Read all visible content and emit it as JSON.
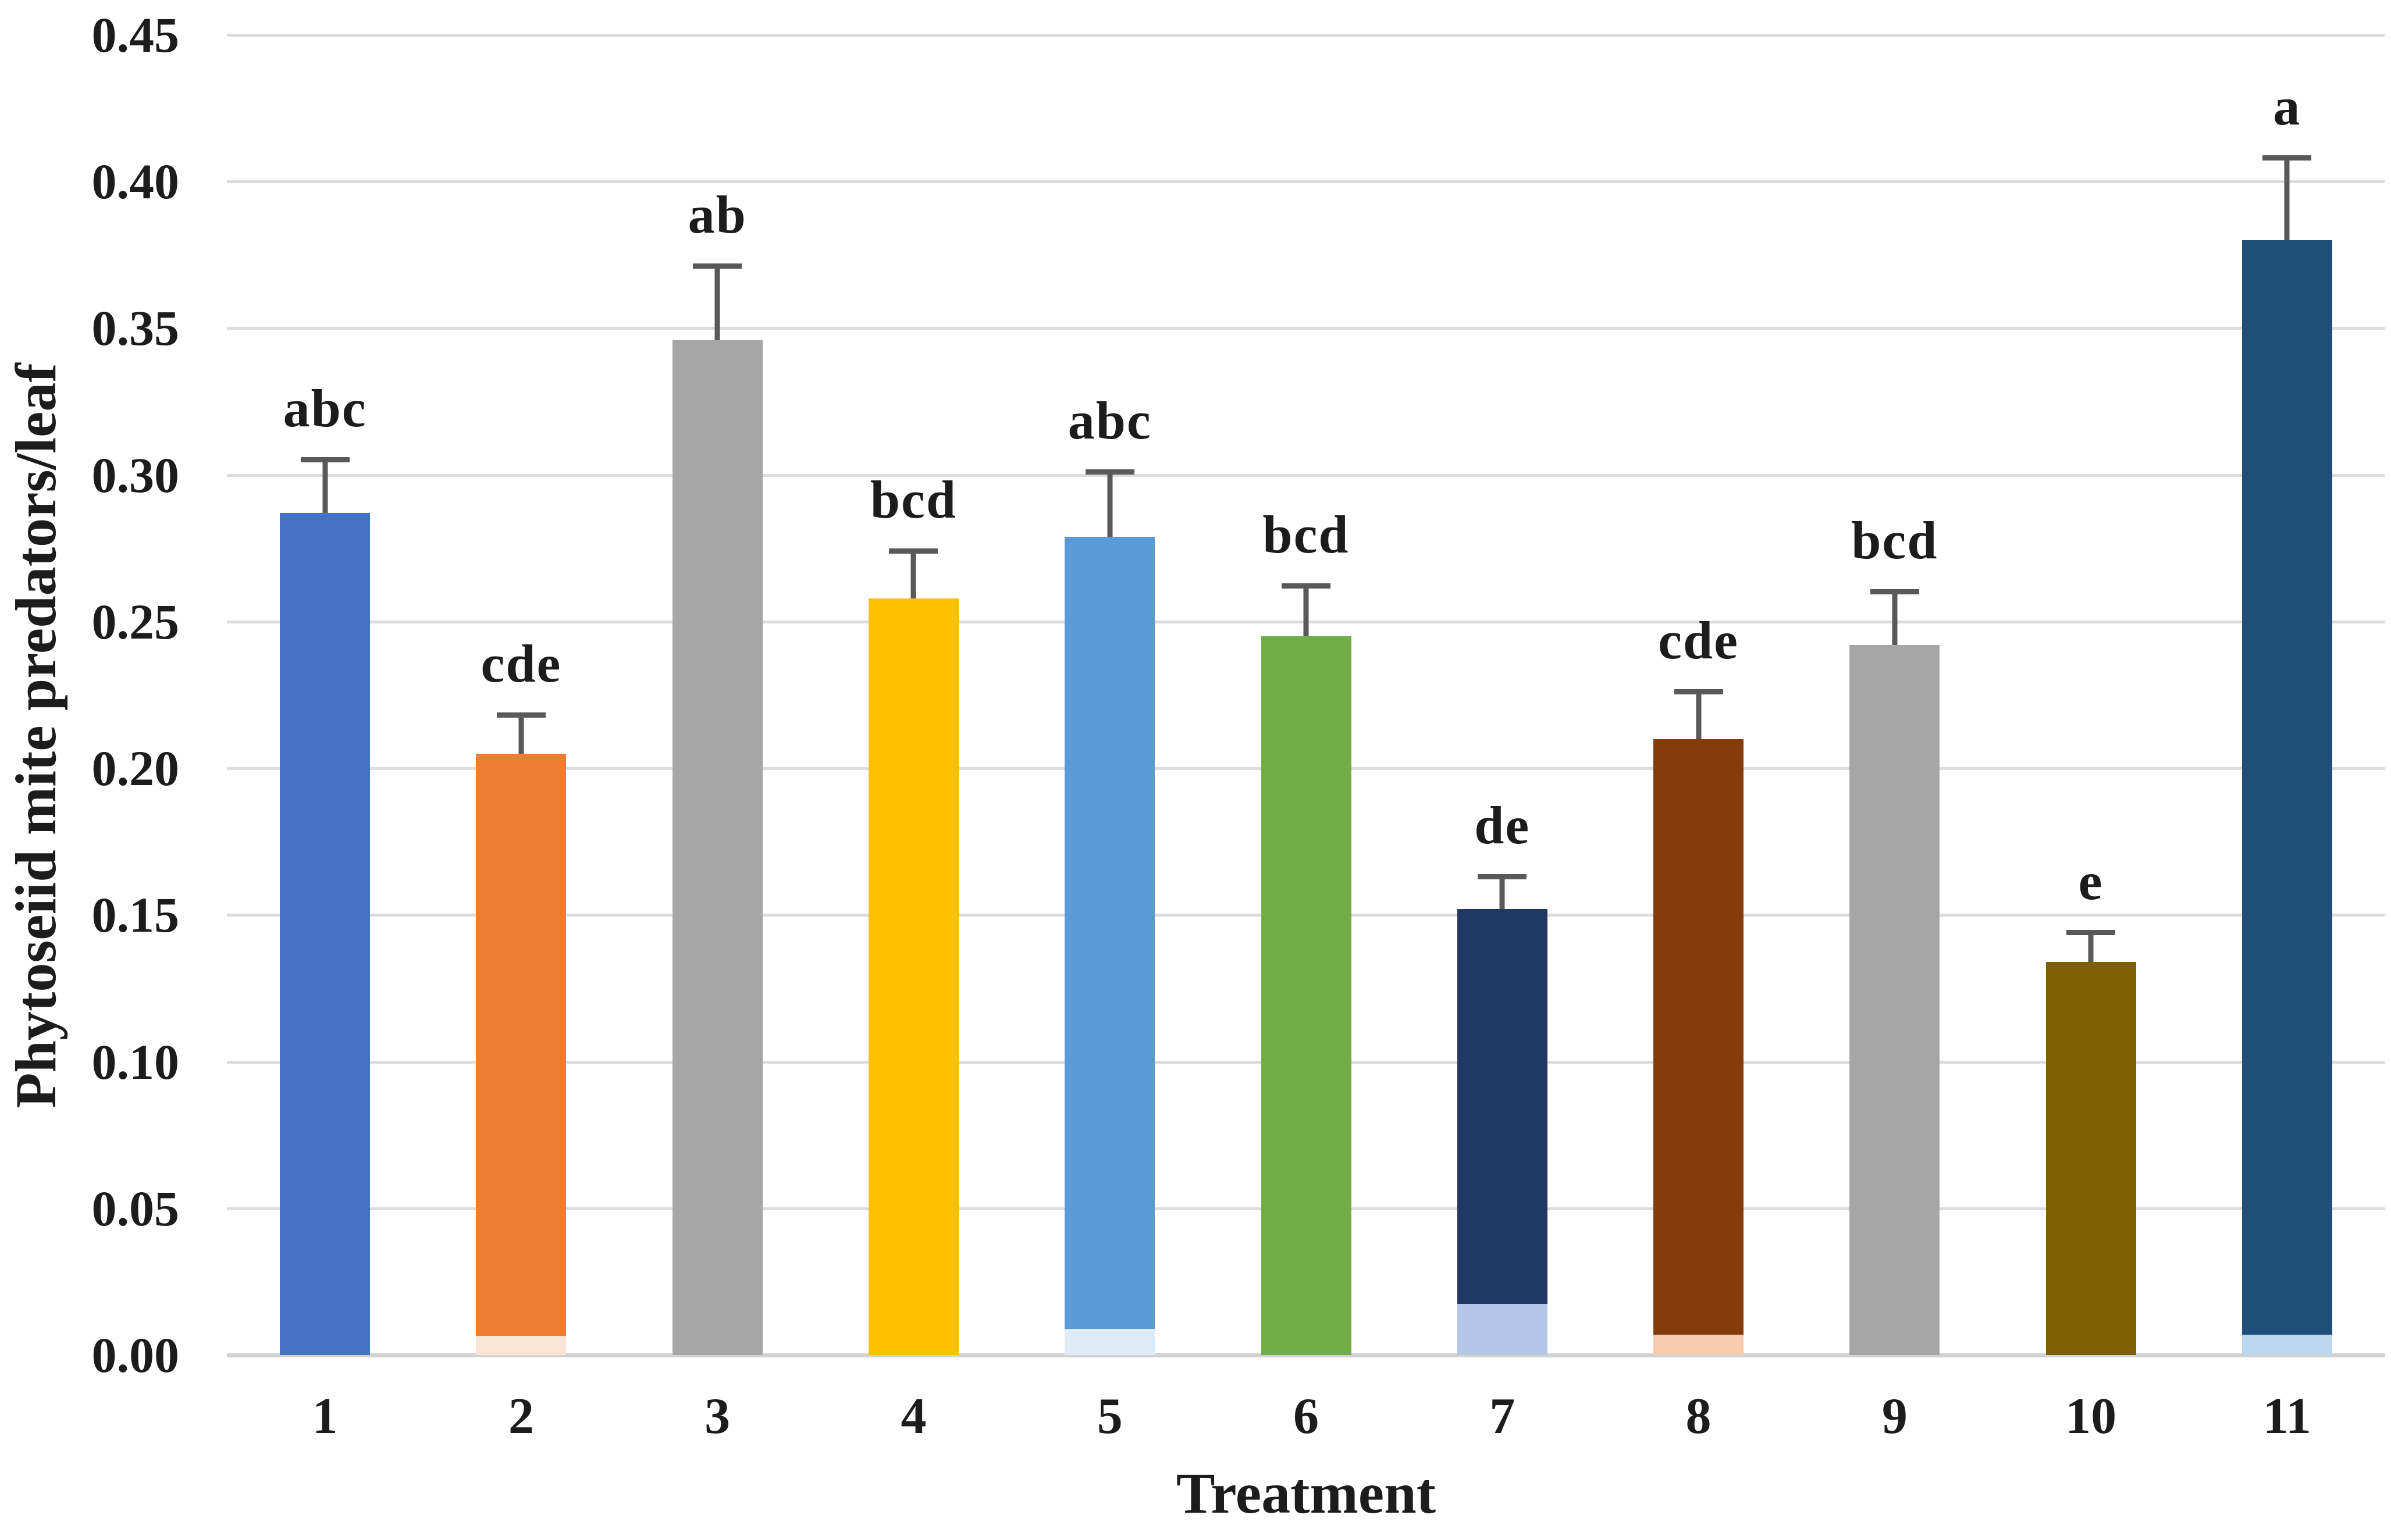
{
  "figure": {
    "background": "#ffffff"
  },
  "chart_data": {
    "type": "bar",
    "title": "",
    "xlabel": "Treatment",
    "ylabel": "Phytoseiid mite predators/leaf",
    "categories": [
      "1",
      "2",
      "3",
      "4",
      "5",
      "6",
      "7",
      "8",
      "9",
      "10",
      "11"
    ],
    "values": [
      0.287,
      0.205,
      0.346,
      0.258,
      0.279,
      0.245,
      0.152,
      0.21,
      0.242,
      0.134,
      0.38
    ],
    "error_bar_tops": [
      0.306,
      0.219,
      0.372,
      0.275,
      0.302,
      0.263,
      0.164,
      0.227,
      0.261,
      0.145,
      0.409
    ],
    "errors_upper": [
      0.019,
      0.014,
      0.026,
      0.017,
      0.023,
      0.018,
      0.012,
      0.017,
      0.019,
      0.011,
      0.029
    ],
    "significance_letters": [
      "abc",
      "cde",
      "ab",
      "bcd",
      "abc",
      "bcd",
      "de",
      "cde",
      "bcd",
      "e",
      "a"
    ],
    "bar_colors": [
      "#4472c4",
      "#ed7d31",
      "#a6a6a6",
      "#ffc000",
      "#5b9bd5",
      "#70ad47",
      "#1f3864",
      "#843c0c",
      "#a6a6a6",
      "#7f6000",
      "#1f4e79"
    ],
    "patterned_bars": [
      3,
      9
    ],
    "base_segments": [
      null,
      {
        "value": 0.0065,
        "color": "#fbe5d6"
      },
      null,
      null,
      {
        "value": 0.009,
        "color": "#deebf7"
      },
      null,
      {
        "value": 0.0175,
        "color": "#b4c7e7"
      },
      {
        "value": 0.007,
        "color": "#f8cbad"
      },
      null,
      null,
      {
        "value": 0.007,
        "color": "#bdd7ee"
      }
    ],
    "ylim": [
      0,
      0.45
    ],
    "ytick_step": 0.05,
    "ytick_labels": [
      "0.00",
      "0.05",
      "0.10",
      "0.15",
      "0.20",
      "0.25",
      "0.30",
      "0.35",
      "0.40",
      "0.45"
    ],
    "grid": true,
    "legend": "none",
    "gridline_color": "#dcdcdc",
    "axis_line_color": "#d2d2d2",
    "error_bar_color": "#595959",
    "text_color": "#1c1c1c"
  }
}
